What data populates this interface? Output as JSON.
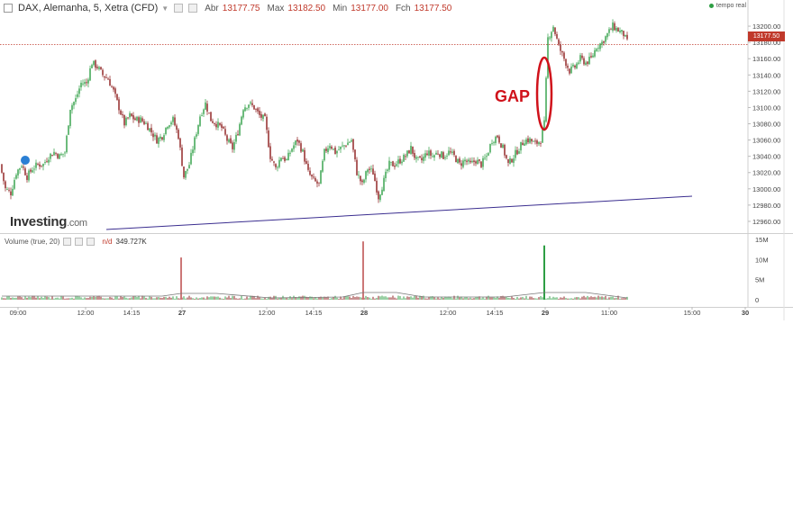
{
  "header": {
    "symbol": "DAX, Alemanha, 5, Xetra (CFD)",
    "open_label": "Abr",
    "open": "13177.75",
    "high_label": "Max",
    "high": "13182.50",
    "low_label": "Min",
    "low": "13177.00",
    "close_label": "Fch",
    "close": "13177.50"
  },
  "realtime_label": "tempo real",
  "current_price_tag": "13177.50",
  "annotation": "GAP",
  "logo": {
    "brand": "Investing",
    "domain": ".com"
  },
  "volume": {
    "title": "Volume (true, 20)",
    "nd": "n/d",
    "value": "349.727K",
    "axis_ticks": [
      "15M",
      "10M",
      "5M",
      "0"
    ]
  },
  "colors": {
    "up": "#2e9e44",
    "down": "#8b1a1a",
    "gap_mark": "#d0121b",
    "trendline": "#3a2d8f",
    "price_line": "#c0392b"
  },
  "chart_data": {
    "type": "candlestick",
    "ylim": [
      12950,
      13220
    ],
    "y_ticks": [
      "13200.00",
      "13180.00",
      "13160.00",
      "13140.00",
      "13120.00",
      "13100.00",
      "13080.00",
      "13060.00",
      "13040.00",
      "13020.00",
      "13000.00",
      "12980.00",
      "12960.00"
    ],
    "x_ticks": [
      "09:00",
      "12:00",
      "14:15",
      "27",
      "12:00",
      "14:15",
      "28",
      "12:00",
      "14:15",
      "29",
      "11:00",
      "15:00",
      "30"
    ],
    "current_price": 13177.5,
    "close_path": [
      [
        0,
        13030
      ],
      [
        6,
        13000
      ],
      [
        12,
        12995
      ],
      [
        18,
        13020
      ],
      [
        24,
        13030
      ],
      [
        30,
        13015
      ],
      [
        36,
        13025
      ],
      [
        42,
        13030
      ],
      [
        48,
        13030
      ],
      [
        54,
        13040
      ],
      [
        60,
        13045
      ],
      [
        66,
        13040
      ],
      [
        72,
        13045
      ],
      [
        78,
        13100
      ],
      [
        84,
        13110
      ],
      [
        90,
        13130
      ],
      [
        96,
        13130
      ],
      [
        102,
        13155
      ],
      [
        108,
        13150
      ],
      [
        114,
        13140
      ],
      [
        120,
        13135
      ],
      [
        126,
        13120
      ],
      [
        132,
        13100
      ],
      [
        138,
        13080
      ],
      [
        144,
        13090
      ],
      [
        150,
        13085
      ],
      [
        156,
        13085
      ],
      [
        162,
        13080
      ],
      [
        168,
        13070
      ],
      [
        174,
        13060
      ],
      [
        180,
        13065
      ],
      [
        186,
        13080
      ],
      [
        192,
        13085
      ],
      [
        198,
        13065
      ],
      [
        204,
        13015
      ],
      [
        210,
        13030
      ],
      [
        216,
        13060
      ],
      [
        222,
        13090
      ],
      [
        228,
        13105
      ],
      [
        234,
        13085
      ],
      [
        240,
        13080
      ],
      [
        246,
        13075
      ],
      [
        252,
        13060
      ],
      [
        258,
        13050
      ],
      [
        264,
        13070
      ],
      [
        270,
        13100
      ],
      [
        276,
        13105
      ],
      [
        282,
        13100
      ],
      [
        288,
        13090
      ],
      [
        294,
        13085
      ],
      [
        300,
        13040
      ],
      [
        306,
        13025
      ],
      [
        312,
        13040
      ],
      [
        318,
        13035
      ],
      [
        324,
        13050
      ],
      [
        330,
        13060
      ],
      [
        336,
        13045
      ],
      [
        342,
        13020
      ],
      [
        348,
        13010
      ],
      [
        354,
        13005
      ],
      [
        360,
        13045
      ],
      [
        366,
        13055
      ],
      [
        372,
        13045
      ],
      [
        378,
        13050
      ],
      [
        384,
        13055
      ],
      [
        390,
        13060
      ],
      [
        396,
        13020
      ],
      [
        402,
        13005
      ],
      [
        408,
        13025
      ],
      [
        414,
        13020
      ],
      [
        420,
        12990
      ],
      [
        426,
        13010
      ],
      [
        432,
        13030
      ],
      [
        438,
        13030
      ],
      [
        444,
        13035
      ],
      [
        450,
        13040
      ],
      [
        456,
        13050
      ],
      [
        462,
        13035
      ],
      [
        468,
        13035
      ],
      [
        474,
        13045
      ],
      [
        480,
        13040
      ],
      [
        486,
        13045
      ],
      [
        492,
        13040
      ],
      [
        498,
        13045
      ],
      [
        504,
        13040
      ],
      [
        510,
        13030
      ],
      [
        516,
        13035
      ],
      [
        522,
        13030
      ],
      [
        528,
        13035
      ],
      [
        534,
        13030
      ],
      [
        540,
        13040
      ],
      [
        546,
        13060
      ],
      [
        552,
        13065
      ],
      [
        558,
        13050
      ],
      [
        564,
        13030
      ],
      [
        570,
        13040
      ],
      [
        576,
        13050
      ],
      [
        582,
        13060
      ],
      [
        588,
        13060
      ],
      [
        594,
        13055
      ],
      [
        600,
        13060
      ],
      [
        604,
        13080
      ],
      [
        608,
        13185
      ],
      [
        614,
        13200
      ],
      [
        620,
        13175
      ],
      [
        626,
        13160
      ],
      [
        632,
        13145
      ],
      [
        638,
        13150
      ],
      [
        644,
        13160
      ],
      [
        650,
        13155
      ],
      [
        656,
        13160
      ],
      [
        662,
        13175
      ],
      [
        668,
        13180
      ],
      [
        674,
        13190
      ],
      [
        680,
        13200
      ],
      [
        686,
        13195
      ],
      [
        692,
        13190
      ],
      [
        696,
        13180
      ]
    ],
    "volume_spikes": [
      {
        "label": "27",
        "value_M": 10.5
      },
      {
        "label": "28",
        "value_M": 14.5
      },
      {
        "label": "29",
        "value_M": 13.5
      }
    ]
  }
}
